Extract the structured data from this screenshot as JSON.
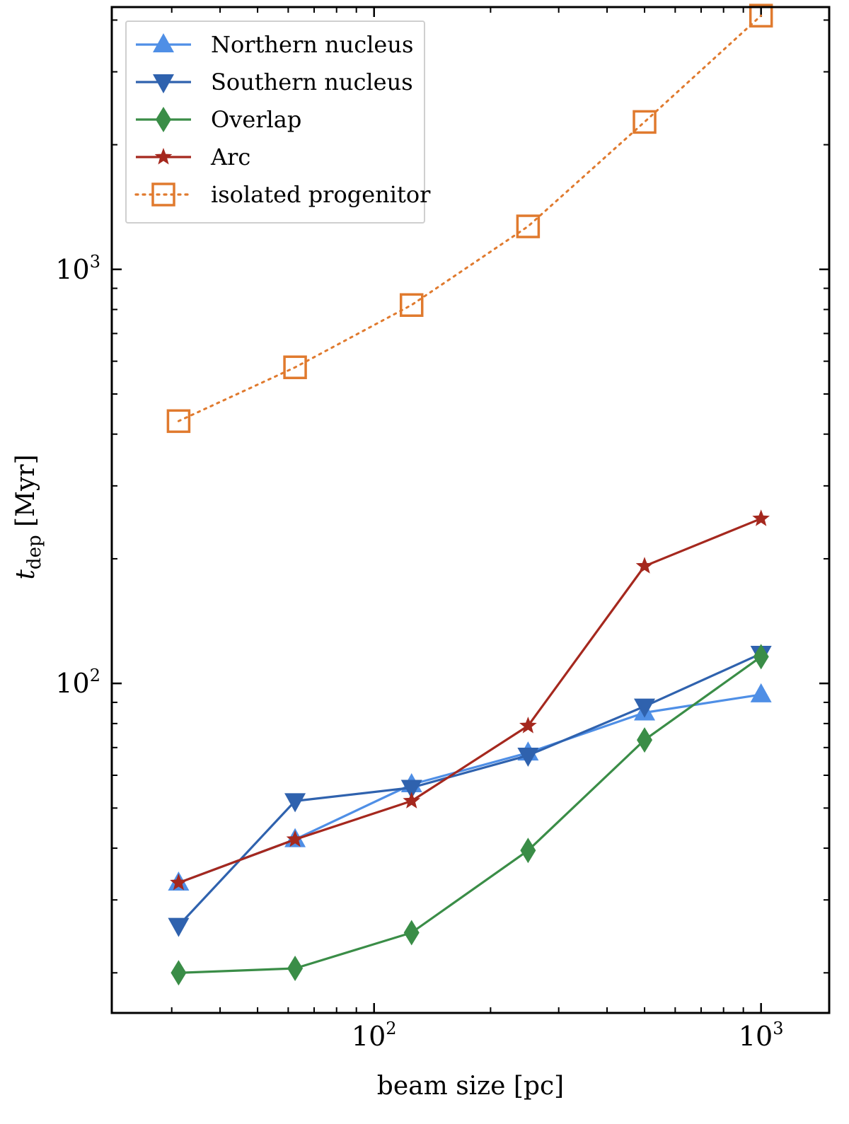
{
  "chart_data": {
    "type": "line",
    "xscale": "log",
    "yscale": "log",
    "xlim": [
      21,
      1500
    ],
    "ylim": [
      16,
      4300
    ],
    "xlabel": "beam size [pc]",
    "ylabel_main": "t",
    "ylabel_sub": "dep",
    "ylabel_unit": " [Myr]",
    "x_ticks": [
      {
        "value": 100,
        "base": "10",
        "exp": "2"
      },
      {
        "value": 1000,
        "base": "10",
        "exp": "3"
      }
    ],
    "y_ticks": [
      {
        "value": 100,
        "base": "10",
        "exp": "2"
      },
      {
        "value": 1000,
        "base": "10",
        "exp": "3"
      }
    ],
    "legend_position": "upper-left",
    "series": [
      {
        "name": "Northern nucleus",
        "color": "#4f8fe6",
        "marker": "triangle-up",
        "linestyle": "solid",
        "x": [
          31.25,
          62.5,
          125,
          250,
          500,
          1000
        ],
        "y": [
          33,
          42,
          57,
          68,
          85,
          94
        ]
      },
      {
        "name": "Southern nucleus",
        "color": "#2f62ae",
        "marker": "triangle-down",
        "linestyle": "solid",
        "x": [
          31.25,
          62.5,
          125,
          250,
          500,
          1000
        ],
        "y": [
          26,
          52,
          56,
          67,
          88,
          118
        ]
      },
      {
        "name": "Overlap",
        "color": "#3a8d47",
        "marker": "diamond",
        "linestyle": "solid",
        "x": [
          31.25,
          62.5,
          125,
          250,
          500,
          1000
        ],
        "y": [
          20,
          20.5,
          25,
          39.5,
          73,
          116
        ]
      },
      {
        "name": "Arc",
        "color": "#a5281e",
        "marker": "star",
        "linestyle": "solid",
        "x": [
          31.25,
          62.5,
          125,
          250,
          500,
          1000
        ],
        "y": [
          33,
          42,
          52,
          79,
          192,
          250
        ]
      },
      {
        "name": "isolated progenitor",
        "color": "#e07a2e",
        "marker": "square-open",
        "linestyle": "dotted",
        "x": [
          31.25,
          62.5,
          125,
          250,
          500,
          1000
        ],
        "y": [
          430,
          580,
          820,
          1270,
          2270,
          4100
        ]
      }
    ]
  }
}
